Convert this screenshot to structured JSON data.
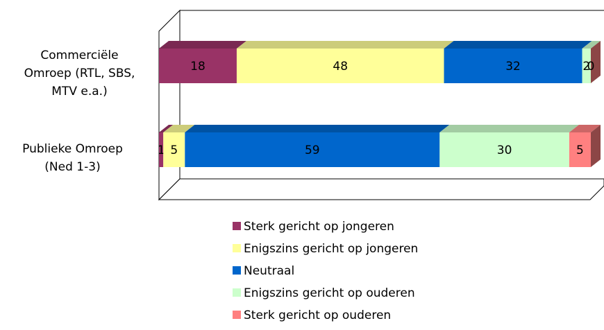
{
  "chart_data": {
    "type": "stacked-bar-3d",
    "categories": [
      "Commerciële Omroep (RTL, SBS, MTV e.a.)",
      "Publieke Omroep (Ned 1-3)"
    ],
    "xlim": [
      0,
      100
    ],
    "series": [
      {
        "name": "Sterk gericht op jongeren",
        "color": "#993366",
        "values": [
          18,
          1
        ]
      },
      {
        "name": "Enigszins gericht op jongeren",
        "color": "#ffff99",
        "values": [
          48,
          5
        ]
      },
      {
        "name": "Neutraal",
        "color": "#0066cc",
        "values": [
          32,
          59
        ]
      },
      {
        "name": "Enigszins gericht op ouderen",
        "color": "#ccffcc",
        "values": [
          2,
          30
        ]
      },
      {
        "name": "Sterk gericht op ouderen",
        "color": "#ff8080",
        "values": [
          0,
          5
        ]
      }
    ]
  }
}
